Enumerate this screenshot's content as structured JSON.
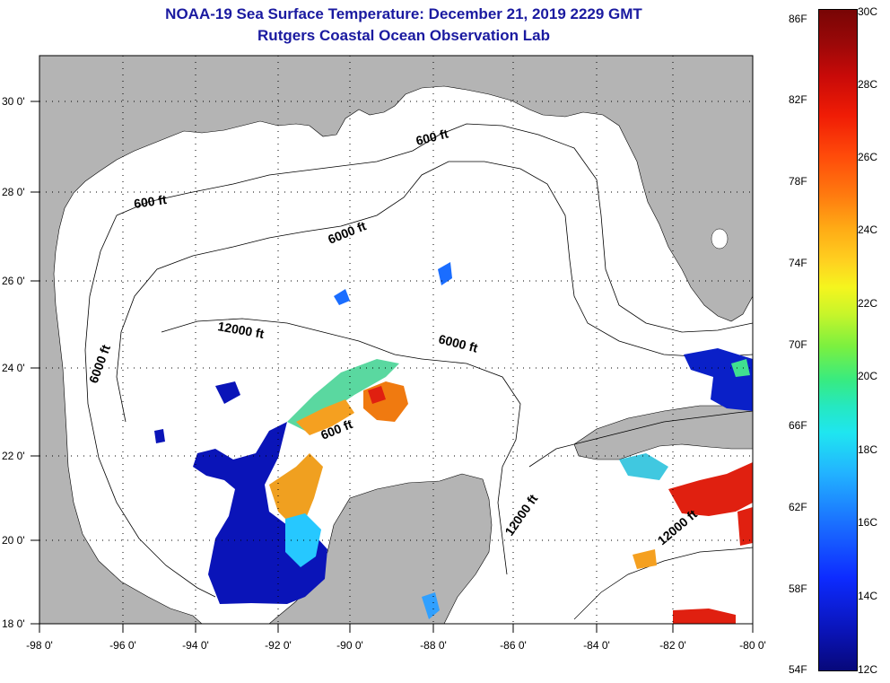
{
  "title": "NOAA-19 Sea Surface Temperature:  December 21, 2019 2229 GMT",
  "subtitle": "Rutgers Coastal Ocean Observation Lab",
  "axes": {
    "y_labels": [
      "30 0'",
      "28 0'",
      "26 0'",
      "24 0'",
      "22 0'",
      "20 0'",
      "18 0'"
    ],
    "x_labels": [
      "-98 0'",
      "-96 0'",
      "-94 0'",
      "-92 0'",
      "-90 0'",
      "-88 0'",
      "-86 0'",
      "-84 0'",
      "-82 0'",
      "-80 0'"
    ],
    "lat_range": [
      18,
      31
    ],
    "lon_range": [
      -98,
      -80
    ]
  },
  "contour_labels": [
    "600 ft",
    "600 ft",
    "6000 ft",
    "12000 ft",
    "6000 ft",
    "6000 ft",
    "600 ft",
    "12000 ft",
    "12000 ft"
  ],
  "colorbar": {
    "fahrenheit": [
      "86F",
      "82F",
      "78F",
      "74F",
      "70F",
      "66F",
      "62F",
      "58F",
      "54F"
    ],
    "celsius": [
      "30C",
      "28C",
      "26C",
      "24C",
      "22C",
      "20C",
      "18C",
      "16C",
      "14C",
      "12C"
    ],
    "range_f": [
      54,
      86
    ],
    "range_c": [
      12,
      30
    ]
  },
  "colors": {
    "land": "#b4b4b4",
    "ocean": "#ffffff",
    "title": "#1a1aa0",
    "cold": "#0a14b8",
    "warm": "#e02010"
  }
}
